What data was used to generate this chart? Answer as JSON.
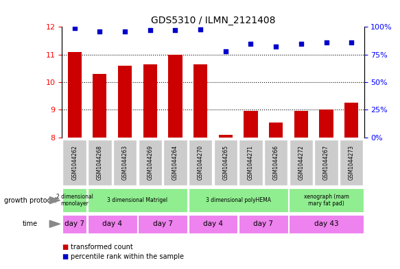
{
  "title": "GDS5310 / ILMN_2121408",
  "samples": [
    "GSM1044262",
    "GSM1044268",
    "GSM1044263",
    "GSM1044269",
    "GSM1044264",
    "GSM1044270",
    "GSM1044265",
    "GSM1044271",
    "GSM1044266",
    "GSM1044272",
    "GSM1044267",
    "GSM1044273"
  ],
  "bar_values": [
    11.1,
    10.3,
    10.6,
    10.65,
    11.0,
    10.65,
    8.1,
    8.95,
    8.55,
    8.95,
    9.0,
    9.25
  ],
  "dot_values": [
    99,
    96,
    96,
    97,
    97,
    98,
    78,
    85,
    82,
    85,
    86,
    86
  ],
  "bar_color": "#cc0000",
  "dot_color": "#0000cc",
  "ylim_left": [
    8,
    12
  ],
  "ylim_right": [
    0,
    100
  ],
  "yticks_left": [
    8,
    9,
    10,
    11,
    12
  ],
  "yticks_right": [
    0,
    25,
    50,
    75,
    100
  ],
  "yticklabels_right": [
    "0%",
    "25%",
    "50%",
    "75%",
    "100%"
  ],
  "sample_box_color": "#cccccc",
  "growth_protocol_groups": [
    {
      "label": "2 dimensional\nmonolayer",
      "start": 0,
      "end": 1,
      "color": "#90EE90"
    },
    {
      "label": "3 dimensional Matrigel",
      "start": 1,
      "end": 5,
      "color": "#90EE90"
    },
    {
      "label": "3 dimensional polyHEMA",
      "start": 5,
      "end": 9,
      "color": "#90EE90"
    },
    {
      "label": "xenograph (mam\nmary fat pad)",
      "start": 9,
      "end": 12,
      "color": "#90EE90"
    }
  ],
  "time_groups": [
    {
      "label": "day 7",
      "start": 0,
      "end": 1,
      "color": "#ee82ee"
    },
    {
      "label": "day 4",
      "start": 1,
      "end": 3,
      "color": "#ee82ee"
    },
    {
      "label": "day 7",
      "start": 3,
      "end": 5,
      "color": "#ee82ee"
    },
    {
      "label": "day 4",
      "start": 5,
      "end": 7,
      "color": "#ee82ee"
    },
    {
      "label": "day 7",
      "start": 7,
      "end": 9,
      "color": "#ee82ee"
    },
    {
      "label": "day 43",
      "start": 9,
      "end": 12,
      "color": "#ee82ee"
    }
  ],
  "legend_items": [
    {
      "label": "transformed count",
      "color": "#cc0000"
    },
    {
      "label": "percentile rank within the sample",
      "color": "#0000cc"
    }
  ]
}
